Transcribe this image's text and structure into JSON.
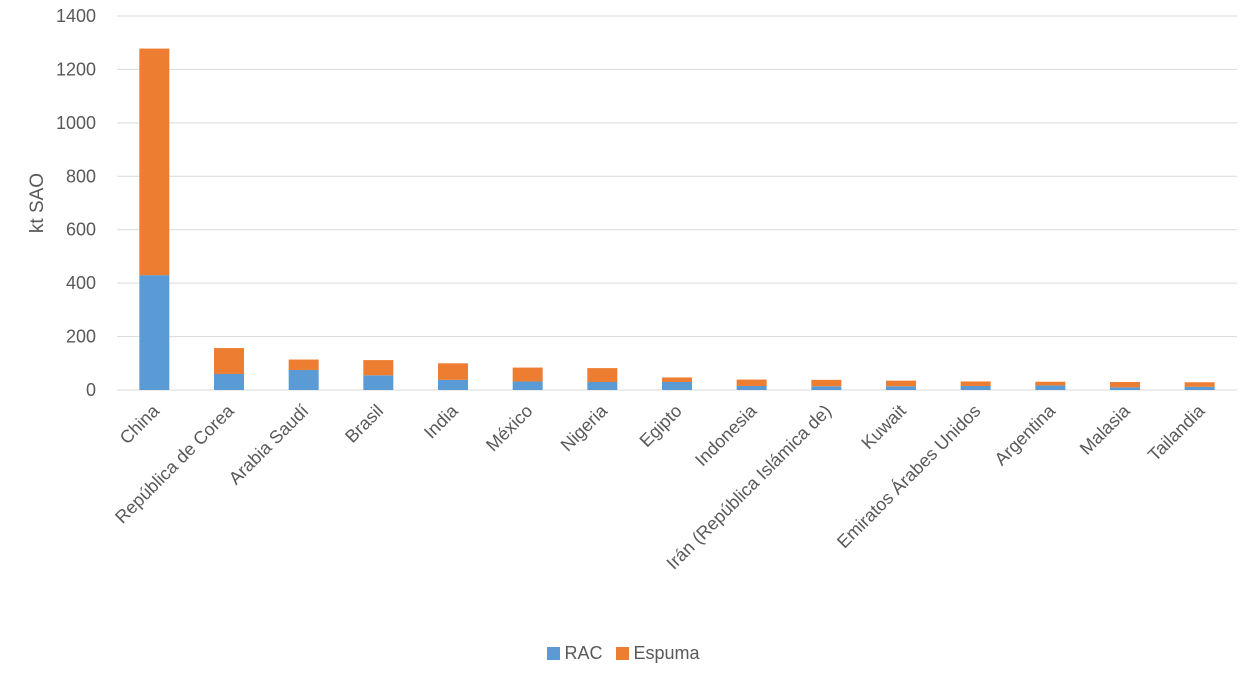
{
  "chart_data": {
    "type": "bar",
    "stacked": true,
    "categories": [
      "China",
      "República de Corea",
      "Arabia Saudí",
      "Brasil",
      "India",
      "México",
      "Nigeria",
      "Egipto",
      "Indonesia",
      "Irán (República Islámica de)",
      "Kuwait",
      "Emiratos Árabes Unidos",
      "Argentina",
      "Malasia",
      "Tailandia"
    ],
    "series": [
      {
        "name": "RAC",
        "color": "#5B9BD5",
        "values": [
          430,
          60,
          75,
          55,
          38,
          32,
          30,
          30,
          15,
          14,
          14,
          15,
          17,
          10,
          12
        ]
      },
      {
        "name": "Espuma",
        "color": "#ED7D31",
        "values": [
          848,
          97,
          39,
          57,
          62,
          52,
          52,
          17,
          24,
          24,
          21,
          17,
          14,
          20,
          17
        ]
      }
    ],
    "title": "",
    "xlabel": "",
    "ylabel": "kt SAO",
    "ylim": [
      0,
      1400
    ],
    "yticks": [
      0,
      200,
      400,
      600,
      800,
      1000,
      1200,
      1400
    ],
    "grid": true,
    "legend_position": "bottom"
  }
}
